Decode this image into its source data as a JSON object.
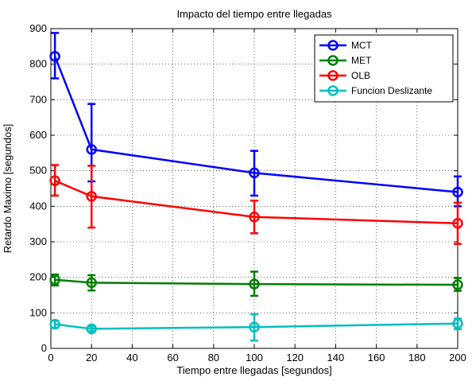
{
  "chart_data": {
    "type": "line",
    "title": "Impacto del tiempo entre llegadas",
    "xlabel": "Tiempo entre llegadas [segundos]",
    "ylabel": "Retardo Maximo [segundos]",
    "xlim": [
      0,
      200
    ],
    "ylim": [
      0,
      900
    ],
    "xticks": [
      0,
      20,
      40,
      60,
      80,
      100,
      120,
      140,
      160,
      180,
      200
    ],
    "yticks": [
      0,
      100,
      200,
      300,
      400,
      500,
      600,
      700,
      800,
      900
    ],
    "grid": true,
    "legend_position": "top-right",
    "x": [
      2,
      20,
      100,
      200
    ],
    "series": [
      {
        "name": "MCT",
        "color": "#0000ff",
        "values": [
          822,
          560,
          494,
          440
        ],
        "err_low": [
          760,
          470,
          430,
          400
        ],
        "err_high": [
          888,
          688,
          556,
          484
        ]
      },
      {
        "name": "MET",
        "color": "#007f00",
        "values": [
          193,
          185,
          181,
          179
        ],
        "err_low": [
          177,
          163,
          148,
          162
        ],
        "err_high": [
          208,
          206,
          216,
          198
        ]
      },
      {
        "name": "OLB",
        "color": "#ff0000",
        "values": [
          472,
          428,
          370,
          352
        ],
        "err_low": [
          430,
          340,
          324,
          294
        ],
        "err_high": [
          516,
          514,
          416,
          410
        ]
      },
      {
        "name": "Funcion Deslizante",
        "color": "#00bfbf",
        "values": [
          68,
          55,
          60,
          70
        ],
        "err_low": [
          58,
          48,
          22,
          54
        ],
        "err_high": [
          78,
          62,
          96,
          84
        ]
      }
    ]
  }
}
